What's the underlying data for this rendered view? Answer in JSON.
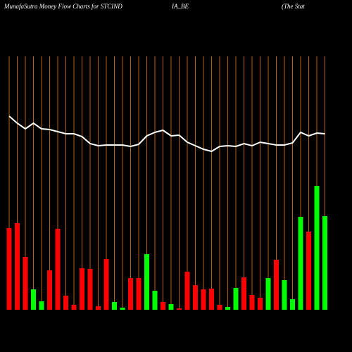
{
  "chart_data": {
    "type": "bar",
    "title_segments": [
      "MunafaSutra  Money Flow  Charts for STCIND",
      "IA_BE",
      "(The  Stat"
    ],
    "categories": [
      null,
      null,
      null,
      null,
      null,
      null,
      null,
      null,
      null,
      null,
      null,
      null,
      null,
      null,
      null,
      null,
      null,
      null,
      null,
      null,
      null,
      null,
      null,
      null,
      null,
      null,
      null,
      null,
      null,
      null,
      null,
      null,
      null,
      null,
      null,
      null,
      null,
      null,
      null,
      null
    ],
    "ylim": [
      0,
      360
    ],
    "series": [
      {
        "name": "money flow",
        "type": "bar",
        "values": [
          116,
          123,
          75,
          29,
          12,
          56,
          115,
          20,
          7,
          59,
          58,
          5,
          72,
          11,
          3,
          45,
          45,
          79,
          27,
          11,
          8,
          2,
          54,
          35,
          29,
          30,
          7,
          4,
          31,
          46,
          21,
          17,
          45,
          71,
          42,
          15,
          132,
          111,
          176,
          133
        ],
        "colors": [
          "#ff0000",
          "#ff0000",
          "#ff0000",
          "#00ff00",
          "#00ff00",
          "#ff0000",
          "#ff0000",
          "#ff0000",
          "#ff0000",
          "#ff0000",
          "#ff0000",
          "#ff0000",
          "#ff0000",
          "#00ff00",
          "#00ff00",
          "#ff0000",
          "#ff0000",
          "#00ff00",
          "#00ff00",
          "#ff0000",
          "#00ff00",
          "#ff0000",
          "#ff0000",
          "#ff0000",
          "#ff0000",
          "#ff0000",
          "#ff0000",
          "#00ff00",
          "#00ff00",
          "#ff0000",
          "#ff0000",
          "#ff0000",
          "#00ff00",
          "#ff0000",
          "#00ff00",
          "#00ff00",
          "#00ff00",
          "#ff0000",
          "#00ff00",
          "#00ff00"
        ]
      },
      {
        "name": "price",
        "type": "line",
        "color": "#ffffff",
        "values": [
          275,
          265,
          257,
          265,
          257,
          256,
          253,
          250,
          250,
          246,
          236,
          233,
          234,
          234,
          234,
          232,
          235,
          247,
          252,
          255,
          247,
          248,
          238,
          233,
          228,
          225,
          232,
          233,
          232,
          236,
          233,
          238,
          236,
          234,
          234,
          237,
          252,
          247,
          251,
          250
        ]
      }
    ],
    "grid_color": "#b8600b"
  }
}
